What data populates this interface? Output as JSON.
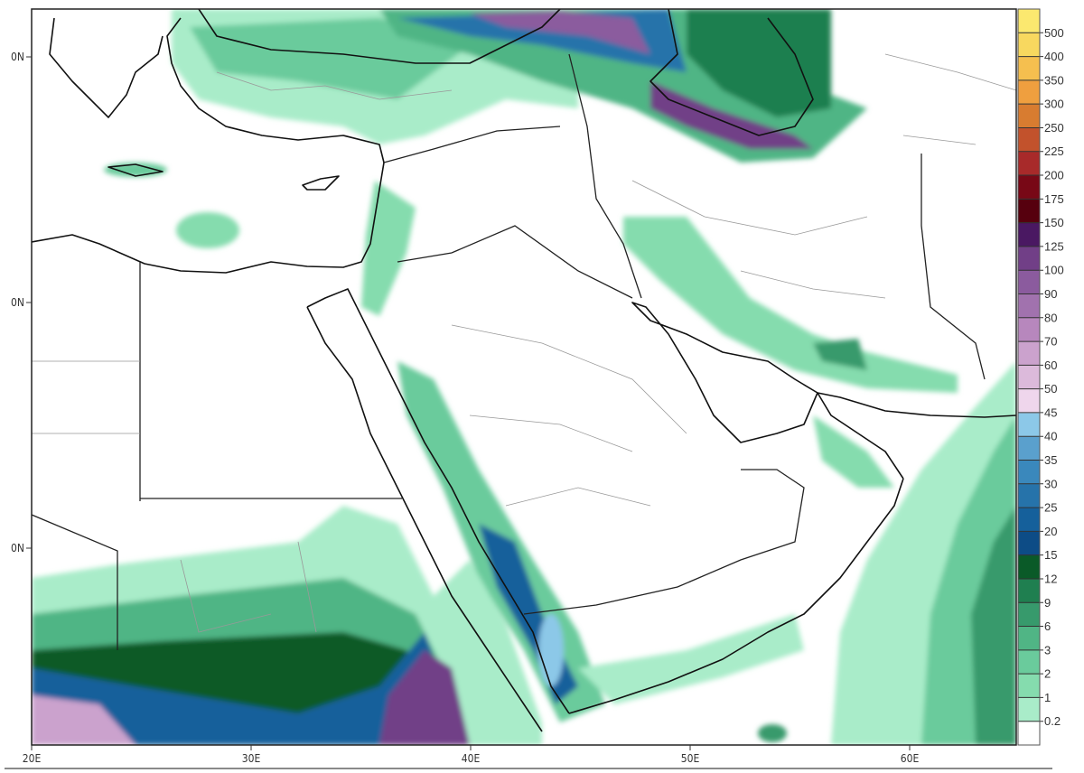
{
  "map": {
    "lon_labels": [
      "20E",
      "30E",
      "40E",
      "50E",
      "60E"
    ],
    "lat_labels": [
      "0N",
      "0N",
      "0N"
    ]
  },
  "colorbar": {
    "levels": [
      "0.2",
      "1",
      "2",
      "3",
      "6",
      "9",
      "12",
      "15",
      "20",
      "25",
      "30",
      "35",
      "40",
      "45",
      "50",
      "60",
      "70",
      "80",
      "90",
      "100",
      "125",
      "150",
      "175",
      "200",
      "225",
      "250",
      "300",
      "350",
      "400",
      "500"
    ],
    "colors": [
      "#ffffff",
      "#a9ecc9",
      "#85dcae",
      "#6acb9c",
      "#50b585",
      "#379a6c",
      "#1f7f50",
      "#0a5a28",
      "#0d4c86",
      "#15609b",
      "#2673aa",
      "#3a88bc",
      "#5aa0cd",
      "#8cc8e8",
      "#efd6ec",
      "#dcbadb",
      "#cba2cd",
      "#b787bd",
      "#a172ae",
      "#8b5b9e",
      "#713f87",
      "#4a1862",
      "#56000e",
      "#780816",
      "#a82a2a",
      "#c2522c",
      "#d87c30",
      "#ef9f3f",
      "#f5bf4f",
      "#f8d85f",
      "#fbe86f"
    ]
  }
}
